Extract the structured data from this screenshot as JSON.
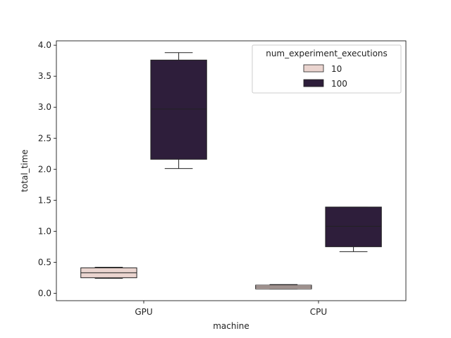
{
  "chart_data": {
    "type": "box",
    "xlabel": "machine",
    "ylabel": "total_time",
    "categories": [
      "GPU",
      "CPU"
    ],
    "ylim": [
      -0.12,
      4.07
    ],
    "yticks": [
      0.0,
      0.5,
      1.0,
      1.5,
      2.0,
      2.5,
      3.0,
      3.5,
      4.0
    ],
    "ytick_labels": [
      "0.0",
      "0.5",
      "1.0",
      "1.5",
      "2.0",
      "2.5",
      "3.0",
      "3.5",
      "4.0"
    ],
    "grid": false,
    "legend": {
      "title": "num_experiment_executions",
      "placement": "top-right",
      "entries": [
        {
          "label": "10",
          "color": "#ead4cf"
        },
        {
          "label": "100",
          "color": "#2e1e3b"
        }
      ]
    },
    "series": [
      {
        "name": "10",
        "color": "#ead4cf",
        "boxes": [
          {
            "category": "GPU",
            "whisker_low": 0.24,
            "q1": 0.25,
            "median": 0.33,
            "q3": 0.41,
            "whisker_high": 0.42
          },
          {
            "category": "CPU",
            "whisker_low": 0.07,
            "q1": 0.07,
            "median": 0.1,
            "q3": 0.13,
            "whisker_high": 0.14
          }
        ]
      },
      {
        "name": "100",
        "color": "#2e1e3b",
        "boxes": [
          {
            "category": "GPU",
            "whisker_low": 2.01,
            "q1": 2.16,
            "median": 2.97,
            "q3": 3.76,
            "whisker_high": 3.88
          },
          {
            "category": "CPU",
            "whisker_low": 0.67,
            "q1": 0.75,
            "median": 1.08,
            "q3": 1.39,
            "whisker_high": 1.39
          }
        ]
      }
    ]
  }
}
